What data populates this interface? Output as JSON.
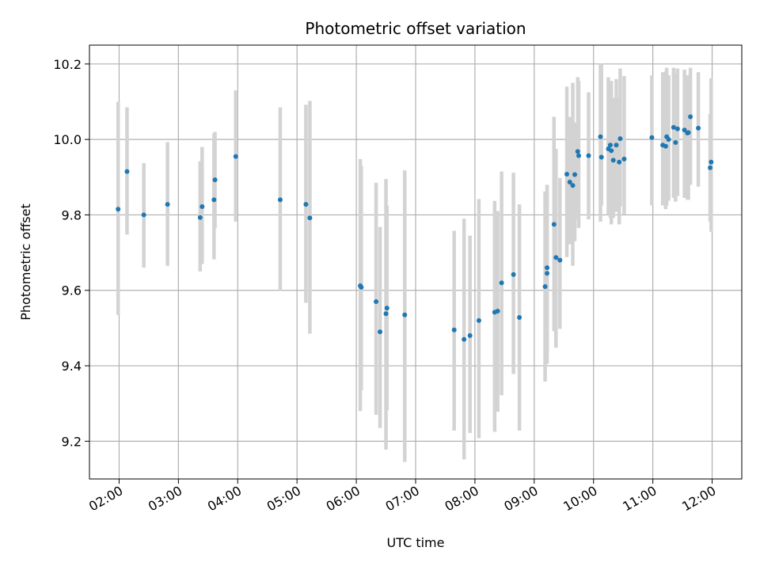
{
  "chart_data": {
    "type": "scatter",
    "title": "Photometric offset variation",
    "xlabel": "UTC time",
    "ylabel": "Photometric offset",
    "x_tick_labels": [
      "02:00",
      "03:00",
      "04:00",
      "05:00",
      "06:00",
      "07:00",
      "08:00",
      "09:00",
      "10:00",
      "11:00",
      "12:00"
    ],
    "x_ticks": [
      "02:00",
      "03:00",
      "04:00",
      "05:00",
      "06:00",
      "07:00",
      "08:00",
      "09:00",
      "10:00",
      "11:00",
      "12:00"
    ],
    "xlim": [
      "01:30",
      "12:30"
    ],
    "y_ticks": [
      9.2,
      9.4,
      9.6,
      9.8,
      10.0,
      10.2
    ],
    "y_tick_labels": [
      "9.2",
      "9.4",
      "9.6",
      "9.8",
      "10.0",
      "10.2"
    ],
    "ylim": [
      9.1,
      10.25
    ],
    "grid": true,
    "point_color": "#1f77b4",
    "errorbar_color": "#d3d3d3",
    "series": [
      {
        "x": [
          "01:59",
          "02:08",
          "02:25",
          "02:49",
          "03:22",
          "03:24",
          "03:36",
          "03:37",
          "03:58",
          "04:43",
          "05:09",
          "05:13",
          "06:04",
          "06:05",
          "06:20",
          "06:24",
          "06:30",
          "06:31",
          "06:49",
          "07:39",
          "07:49",
          "07:55",
          "08:04",
          "08:20",
          "08:23",
          "08:27",
          "08:39",
          "08:45",
          "09:11",
          "09:13",
          "09:13",
          "09:20",
          "09:22",
          "09:26",
          "09:33",
          "09:36",
          "09:39",
          "09:41",
          "09:44",
          "09:45",
          "09:55",
          "10:07",
          "10:08",
          "10:15",
          "10:17",
          "10:18",
          "10:20",
          "10:23",
          "10:26",
          "10:27",
          "10:31",
          "10:59",
          "11:10",
          "11:13",
          "11:14",
          "11:16",
          "11:21",
          "11:23",
          "11:25",
          "11:32",
          "11:35",
          "11:36",
          "11:38",
          "11:46",
          "11:58",
          "11:59"
        ],
        "y": [
          9.815,
          9.915,
          9.8,
          9.828,
          9.793,
          9.822,
          9.84,
          9.893,
          9.955,
          9.84,
          9.828,
          9.792,
          9.612,
          9.608,
          9.57,
          9.49,
          9.538,
          9.553,
          9.535,
          9.495,
          9.47,
          9.48,
          9.52,
          9.542,
          9.545,
          9.62,
          9.642,
          9.528,
          9.61,
          9.66,
          9.645,
          9.775,
          9.687,
          9.68,
          9.908,
          9.887,
          9.878,
          9.907,
          9.968,
          9.957,
          9.957,
          10.007,
          9.953,
          9.975,
          9.985,
          9.97,
          9.945,
          9.985,
          9.94,
          10.002,
          9.948,
          10.005,
          9.985,
          9.982,
          10.007,
          10.0,
          10.032,
          9.992,
          10.028,
          10.025,
          10.017,
          10.018,
          10.06,
          10.03,
          9.925,
          9.94
        ],
        "err_low": [
          9.535,
          9.748,
          9.66,
          9.665,
          9.65,
          9.67,
          9.682,
          9.765,
          9.782,
          9.598,
          9.567,
          9.485,
          9.28,
          9.335,
          9.27,
          9.235,
          9.178,
          9.282,
          9.145,
          9.228,
          9.152,
          9.222,
          9.208,
          9.225,
          9.278,
          9.322,
          9.378,
          9.228,
          9.358,
          9.405,
          9.44,
          9.492,
          9.448,
          9.498,
          9.688,
          9.722,
          9.665,
          9.73,
          9.788,
          9.765,
          9.788,
          9.782,
          9.825,
          9.8,
          9.792,
          9.775,
          9.792,
          9.808,
          9.775,
          9.822,
          9.802,
          9.825,
          9.825,
          9.815,
          9.825,
          9.838,
          9.845,
          9.835,
          9.85,
          9.845,
          9.84,
          9.84,
          9.88,
          9.875,
          9.782,
          9.755
        ],
        "err_high": [
          10.1,
          10.085,
          9.937,
          9.993,
          9.942,
          9.98,
          10.015,
          10.02,
          10.13,
          10.085,
          10.092,
          10.102,
          9.948,
          9.93,
          9.885,
          9.768,
          9.895,
          9.825,
          9.918,
          9.758,
          9.79,
          9.745,
          9.842,
          9.837,
          9.81,
          9.915,
          9.912,
          9.828,
          9.862,
          9.88,
          9.855,
          10.06,
          9.975,
          9.898,
          10.14,
          10.06,
          10.15,
          10.045,
          10.165,
          10.155,
          10.125,
          10.2,
          10.2,
          10.165,
          10.155,
          10.155,
          10.11,
          10.16,
          10.112,
          10.188,
          10.168,
          10.17,
          10.178,
          10.18,
          10.19,
          10.17,
          10.19,
          10.175,
          10.188,
          10.185,
          10.17,
          10.17,
          10.19,
          10.178,
          10.068,
          10.162
        ]
      }
    ]
  }
}
